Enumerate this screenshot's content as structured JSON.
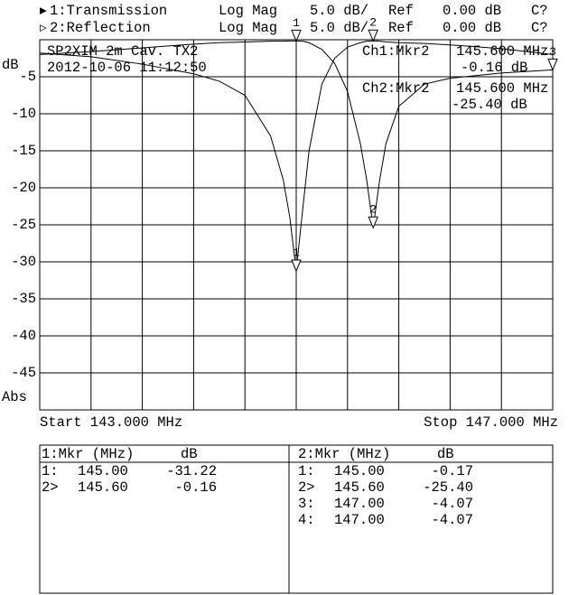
{
  "header": {
    "channels": [
      {
        "marker": "▶",
        "format": "Log Mag",
        "scale": "5.0 dB/",
        "ref_label": "Ref",
        "ref": "0.00 dB",
        "cal": "C?"
      },
      {
        "marker": "▷",
        "format": "Log Mag",
        "scale": "5.0 dB/",
        "ref_label": "Ref",
        "ref": "0.00 dB",
        "cal": "C?"
      }
    ]
  },
  "chart_data": {
    "type": "line",
    "ylabel": "dB",
    "ylabel_bottom": "Abs",
    "start_label": "Start 143.000 MHz",
    "stop_label": "Stop 147.000 MHz",
    "annotations": [
      "SP2XIM 2m Cav. TX2",
      "2012-10-06 11:12:50",
      "Ch1:Mkr2",
      "145.600 MHz",
      "-0.16 dB",
      "Ch2:Mkr2",
      "145.600 MHz",
      "-25.40 dB"
    ],
    "x": [
      143,
      143.4,
      143.8,
      144.2,
      144.4,
      144.6,
      144.8,
      144.9,
      144.95,
      145.0,
      145.05,
      145.1,
      145.2,
      145.3,
      145.4,
      145.5,
      145.55,
      145.6,
      145.65,
      145.7,
      145.8,
      146.0,
      146.2,
      146.6,
      147
    ],
    "xlim": [
      143,
      147
    ],
    "xticks": [
      143,
      143.4,
      143.8,
      144.2,
      144.6,
      145,
      145.4,
      145.8,
      146.2,
      146.6,
      147
    ],
    "ylim": [
      -50,
      0
    ],
    "yticks": [
      -45,
      -40,
      -35,
      -30,
      -25,
      -20,
      -15,
      -10,
      -5
    ],
    "grid": true,
    "series": [
      {
        "name": "1:Transmission",
        "color": "#000000",
        "values": [
          -1.8,
          -2.3,
          -3.3,
          -4.6,
          -5.6,
          -7.5,
          -13,
          -19,
          -24,
          -31.22,
          -23,
          -15,
          -6,
          -2.5,
          -1,
          -0.4,
          -0.2,
          -0.16,
          -0.2,
          -0.3,
          -0.4,
          -0.5,
          -0.7,
          -1.2,
          -2
        ],
        "markers": [
          {
            "x": 145.0,
            "y": -31.22,
            "label": "1"
          },
          {
            "x": 145.6,
            "y": -0.16,
            "label": "2"
          }
        ]
      },
      {
        "name": "2:Reflection",
        "color": "#000000",
        "values": [
          -2,
          -1.6,
          -1.1,
          -0.6,
          -0.4,
          -0.3,
          -0.2,
          -0.2,
          -0.17,
          -0.17,
          -0.2,
          -0.4,
          -1.3,
          -3.2,
          -7,
          -14,
          -19,
          -25.4,
          -19,
          -14,
          -9,
          -6,
          -5.2,
          -4.5,
          -4.07
        ],
        "markers": [
          {
            "x": 145.0,
            "y": -0.17,
            "label": "1"
          },
          {
            "x": 145.6,
            "y": -25.4,
            "label": "2"
          },
          {
            "x": 147.0,
            "y": -4.07,
            "label": "3"
          }
        ]
      }
    ]
  },
  "marker_tables": [
    {
      "title": "1:Mkr (MHz)",
      "unit": "dB",
      "rows": [
        [
          "1:",
          "145.00",
          "-31.22"
        ],
        [
          "2>",
          "145.60",
          "-0.16"
        ]
      ]
    },
    {
      "title": "2:Mkr (MHz)",
      "unit": "dB",
      "rows": [
        [
          "1:",
          "145.00",
          "-0.17"
        ],
        [
          "2>",
          "145.60",
          "-25.40"
        ],
        [
          "3:",
          "147.00",
          "-4.07"
        ],
        [
          "4:",
          "147.00",
          "-4.07"
        ]
      ]
    }
  ]
}
